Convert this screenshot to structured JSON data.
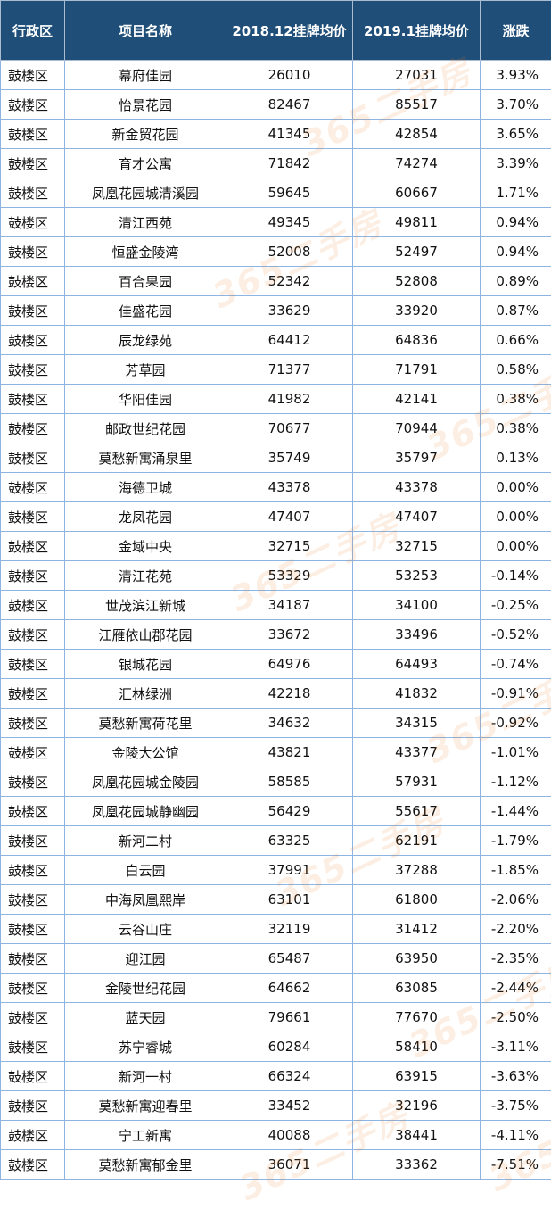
{
  "table": {
    "headers": [
      "行政区",
      "项目名称",
      "2018.12挂牌均价",
      "2019.1挂牌均价",
      "涨跌"
    ],
    "rows": [
      [
        "鼓楼区",
        "幕府佳园",
        "26010",
        "27031",
        "3.93%"
      ],
      [
        "鼓楼区",
        "怡景花园",
        "82467",
        "85517",
        "3.70%"
      ],
      [
        "鼓楼区",
        "新金贸花园",
        "41345",
        "42854",
        "3.65%"
      ],
      [
        "鼓楼区",
        "育才公寓",
        "71842",
        "74274",
        "3.39%"
      ],
      [
        "鼓楼区",
        "凤凰花园城清溪园",
        "59645",
        "60667",
        "1.71%"
      ],
      [
        "鼓楼区",
        "清江西苑",
        "49345",
        "49811",
        "0.94%"
      ],
      [
        "鼓楼区",
        "恒盛金陵湾",
        "52008",
        "52497",
        "0.94%"
      ],
      [
        "鼓楼区",
        "百合果园",
        "52342",
        "52808",
        "0.89%"
      ],
      [
        "鼓楼区",
        "佳盛花园",
        "33629",
        "33920",
        "0.87%"
      ],
      [
        "鼓楼区",
        "辰龙绿苑",
        "64412",
        "64836",
        "0.66%"
      ],
      [
        "鼓楼区",
        "芳草园",
        "71377",
        "71791",
        "0.58%"
      ],
      [
        "鼓楼区",
        "华阳佳园",
        "41982",
        "42141",
        "0.38%"
      ],
      [
        "鼓楼区",
        "邮政世纪花园",
        "70677",
        "70944",
        "0.38%"
      ],
      [
        "鼓楼区",
        "莫愁新寓涌泉里",
        "35749",
        "35797",
        "0.13%"
      ],
      [
        "鼓楼区",
        "海德卫城",
        "43378",
        "43378",
        "0.00%"
      ],
      [
        "鼓楼区",
        "龙凤花园",
        "47407",
        "47407",
        "0.00%"
      ],
      [
        "鼓楼区",
        "金域中央",
        "32715",
        "32715",
        "0.00%"
      ],
      [
        "鼓楼区",
        "清江花苑",
        "53329",
        "53253",
        "-0.14%"
      ],
      [
        "鼓楼区",
        "世茂滨江新城",
        "34187",
        "34100",
        "-0.25%"
      ],
      [
        "鼓楼区",
        "江雁依山郡花园",
        "33672",
        "33496",
        "-0.52%"
      ],
      [
        "鼓楼区",
        "银城花园",
        "64976",
        "64493",
        "-0.74%"
      ],
      [
        "鼓楼区",
        "汇林绿洲",
        "42218",
        "41832",
        "-0.91%"
      ],
      [
        "鼓楼区",
        "莫愁新寓荷花里",
        "34632",
        "34315",
        "-0.92%"
      ],
      [
        "鼓楼区",
        "金陵大公馆",
        "43821",
        "43377",
        "-1.01%"
      ],
      [
        "鼓楼区",
        "凤凰花园城金陵园",
        "58585",
        "57931",
        "-1.12%"
      ],
      [
        "鼓楼区",
        "凤凰花园城静幽园",
        "56429",
        "55617",
        "-1.44%"
      ],
      [
        "鼓楼区",
        "新河二村",
        "63325",
        "62191",
        "-1.79%"
      ],
      [
        "鼓楼区",
        "白云园",
        "37991",
        "37288",
        "-1.85%"
      ],
      [
        "鼓楼区",
        "中海凤凰熙岸",
        "63101",
        "61800",
        "-2.06%"
      ],
      [
        "鼓楼区",
        "云谷山庄",
        "32119",
        "31412",
        "-2.20%"
      ],
      [
        "鼓楼区",
        "迎江园",
        "65487",
        "63950",
        "-2.35%"
      ],
      [
        "鼓楼区",
        "金陵世纪花园",
        "64662",
        "63085",
        "-2.44%"
      ],
      [
        "鼓楼区",
        "蓝天园",
        "79661",
        "77670",
        "-2.50%"
      ],
      [
        "鼓楼区",
        "苏宁睿城",
        "60284",
        "58410",
        "-3.11%"
      ],
      [
        "鼓楼区",
        "新河一村",
        "66324",
        "63915",
        "-3.63%"
      ],
      [
        "鼓楼区",
        "莫愁新寓迎春里",
        "33452",
        "32196",
        "-3.75%"
      ],
      [
        "鼓楼区",
        "宁工新寓",
        "40088",
        "38441",
        "-4.11%"
      ],
      [
        "鼓楼区",
        "莫愁新寓郁金里",
        "36071",
        "33362",
        "-7.51%"
      ]
    ]
  },
  "watermark": {
    "text": "365二手房"
  },
  "colors": {
    "header_bg": "#1f4e79",
    "header_text": "#ffffff",
    "grid": "#8db4e2",
    "watermark": "#eb781e"
  }
}
